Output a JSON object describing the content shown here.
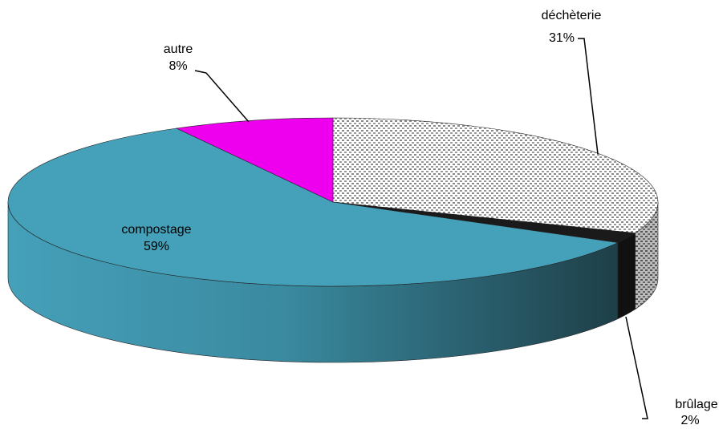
{
  "chart_data": {
    "type": "pie",
    "categories": [
      "déchèterie",
      "brûlage",
      "compostage",
      "autre"
    ],
    "values": [
      31,
      2,
      59,
      8
    ],
    "value_labels": [
      "31%",
      "2%",
      "59%",
      "8%"
    ],
    "colors": [
      "#c8c8c8",
      "#1a1a1a",
      "#45a0b9",
      "#ee00ee"
    ]
  }
}
